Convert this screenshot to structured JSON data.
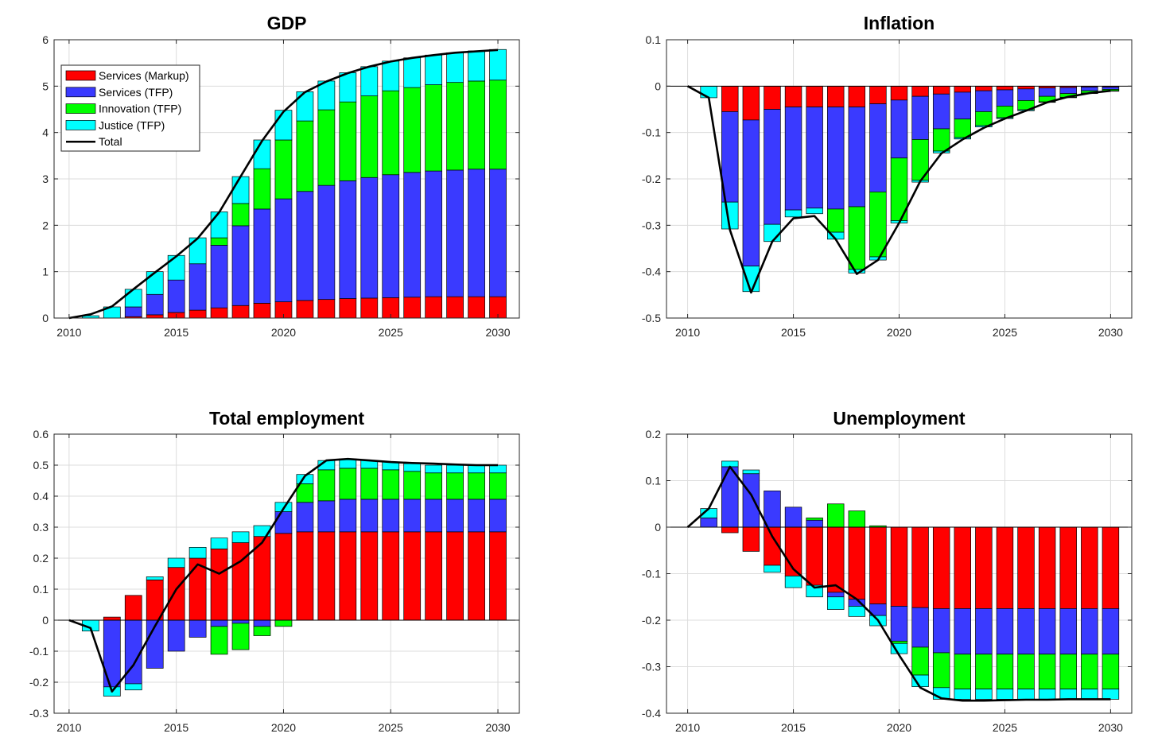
{
  "colors": {
    "Services (Markup)": "#ff0000",
    "Services (TFP)": "#3a3aff",
    "Innovation (TFP)": "#00ff00",
    "Justice (TFP)": "#00ffff",
    "Total": "#000000"
  },
  "legend": {
    "placement": "top-left",
    "entries": [
      "Services (Markup)",
      "Services (TFP)",
      "Innovation (TFP)",
      "Justice (TFP)",
      "Total"
    ]
  },
  "chart_data": [
    {
      "type": "bar",
      "stacked": true,
      "title": "GDP",
      "xlabel": "",
      "ylabel": "",
      "x": [
        2010,
        2011,
        2012,
        2013,
        2014,
        2015,
        2016,
        2017,
        2018,
        2019,
        2020,
        2021,
        2022,
        2023,
        2024,
        2025,
        2026,
        2027,
        2028,
        2029,
        2030
      ],
      "xlim": [
        2009.3,
        2031.0
      ],
      "xticks": [
        "2010",
        "2015",
        "2020",
        "2025",
        "2030"
      ],
      "ylim": [
        0,
        6
      ],
      "yticks": [
        "0",
        "1",
        "2",
        "3",
        "4",
        "5",
        "6"
      ],
      "grid": true,
      "series": [
        {
          "name": "Services (Markup)",
          "values": [
            0,
            0,
            0,
            0.03,
            0.07,
            0.12,
            0.17,
            0.22,
            0.27,
            0.32,
            0.35,
            0.38,
            0.4,
            0.42,
            0.43,
            0.44,
            0.45,
            0.46,
            0.46,
            0.46,
            0.46
          ]
        },
        {
          "name": "Services (TFP)",
          "values": [
            0,
            0,
            0,
            0.21,
            0.44,
            0.7,
            1.0,
            1.35,
            1.72,
            2.03,
            2.22,
            2.35,
            2.46,
            2.54,
            2.6,
            2.65,
            2.69,
            2.71,
            2.73,
            2.75,
            2.75
          ]
        },
        {
          "name": "Innovation (TFP)",
          "values": [
            0,
            0,
            0,
            0,
            0,
            0,
            0,
            0.16,
            0.48,
            0.87,
            1.27,
            1.52,
            1.63,
            1.7,
            1.76,
            1.81,
            1.83,
            1.86,
            1.89,
            1.9,
            1.92
          ]
        },
        {
          "name": "Justice (TFP)",
          "values": [
            0,
            0.05,
            0.24,
            0.38,
            0.49,
            0.53,
            0.56,
            0.56,
            0.58,
            0.62,
            0.64,
            0.63,
            0.62,
            0.63,
            0.63,
            0.64,
            0.64,
            0.64,
            0.64,
            0.65,
            0.66
          ]
        }
      ],
      "total": [
        0,
        0.08,
        0.25,
        0.62,
        0.98,
        1.33,
        1.72,
        2.28,
        3.05,
        3.82,
        4.45,
        4.87,
        5.1,
        5.28,
        5.42,
        5.53,
        5.61,
        5.67,
        5.72,
        5.75,
        5.78
      ]
    },
    {
      "type": "bar",
      "stacked": true,
      "title": "Inflation",
      "xlabel": "",
      "ylabel": "",
      "x": [
        2010,
        2011,
        2012,
        2013,
        2014,
        2015,
        2016,
        2017,
        2018,
        2019,
        2020,
        2021,
        2022,
        2023,
        2024,
        2025,
        2026,
        2027,
        2028,
        2029,
        2030
      ],
      "xlim": [
        2009.0,
        2031.0
      ],
      "xticks": [
        "2010",
        "2015",
        "2020",
        "2025",
        "2030"
      ],
      "ylim": [
        -0.5,
        0.1
      ],
      "yticks": [
        "-0.5",
        "-0.4",
        "-0.3",
        "-0.2",
        "-0.1",
        "0",
        "0.1"
      ],
      "grid": true,
      "series": [
        {
          "name": "Services (Markup)",
          "values": [
            0,
            0,
            -0.055,
            -0.073,
            -0.05,
            -0.045,
            -0.045,
            -0.045,
            -0.045,
            -0.038,
            -0.03,
            -0.022,
            -0.017,
            -0.013,
            -0.01,
            -0.008,
            -0.006,
            -0.004,
            -0.003,
            -0.002,
            -0.002
          ]
        },
        {
          "name": "Services (TFP)",
          "values": [
            0,
            0,
            -0.195,
            -0.315,
            -0.248,
            -0.222,
            -0.218,
            -0.22,
            -0.215,
            -0.19,
            -0.125,
            -0.093,
            -0.075,
            -0.058,
            -0.045,
            -0.035,
            -0.025,
            -0.018,
            -0.013,
            -0.008,
            -0.005
          ]
        },
        {
          "name": "Innovation (TFP)",
          "values": [
            0,
            0,
            0,
            0,
            0,
            0,
            0,
            -0.05,
            -0.135,
            -0.14,
            -0.135,
            -0.088,
            -0.048,
            -0.04,
            -0.03,
            -0.025,
            -0.02,
            -0.012,
            -0.008,
            -0.005,
            -0.003
          ]
        },
        {
          "name": "Justice (TFP)",
          "values": [
            0,
            -0.025,
            -0.058,
            -0.055,
            -0.037,
            -0.015,
            -0.012,
            -0.015,
            -0.008,
            -0.007,
            -0.005,
            -0.004,
            -0.004,
            -0.003,
            -0.003,
            -0.002,
            -0.002,
            -0.001,
            -0.001,
            -0.001,
            -0.001
          ]
        }
      ],
      "total": [
        0,
        -0.025,
        -0.31,
        -0.445,
        -0.335,
        -0.285,
        -0.28,
        -0.33,
        -0.405,
        -0.375,
        -0.295,
        -0.205,
        -0.145,
        -0.115,
        -0.09,
        -0.07,
        -0.053,
        -0.035,
        -0.023,
        -0.015,
        -0.01
      ]
    },
    {
      "type": "bar",
      "stacked": true,
      "title": "Total employment",
      "xlabel": "",
      "ylabel": "",
      "x": [
        2010,
        2011,
        2012,
        2013,
        2014,
        2015,
        2016,
        2017,
        2018,
        2019,
        2020,
        2021,
        2022,
        2023,
        2024,
        2025,
        2026,
        2027,
        2028,
        2029,
        2030
      ],
      "xlim": [
        2009.3,
        2031.0
      ],
      "xticks": [
        "2010",
        "2015",
        "2020",
        "2025",
        "2030"
      ],
      "ylim": [
        -0.3,
        0.6
      ],
      "yticks": [
        "-0.3",
        "-0.2",
        "-0.1",
        "0",
        "0.1",
        "0.2",
        "0.3",
        "0.4",
        "0.5",
        "0.6"
      ],
      "grid": true,
      "series": [
        {
          "name": "Services (Markup)",
          "values": [
            0,
            0,
            0.01,
            0.08,
            0.13,
            0.17,
            0.2,
            0.23,
            0.25,
            0.27,
            0.28,
            0.285,
            0.285,
            0.285,
            0.285,
            0.285,
            0.285,
            0.285,
            0.285,
            0.285,
            0.285
          ]
        },
        {
          "name": "Services (TFP)",
          "values": [
            0,
            0,
            -0.215,
            -0.205,
            -0.155,
            -0.1,
            -0.055,
            -0.02,
            -0.01,
            -0.02,
            0.07,
            0.095,
            0.1,
            0.105,
            0.105,
            0.105,
            0.105,
            0.105,
            0.105,
            0.105,
            0.105
          ]
        },
        {
          "name": "Innovation (TFP)",
          "values": [
            0,
            0,
            0,
            0,
            0,
            0,
            0,
            -0.09,
            -0.085,
            -0.03,
            -0.02,
            0.06,
            0.1,
            0.1,
            0.1,
            0.095,
            0.09,
            0.085,
            0.085,
            0.085,
            0.085
          ]
        },
        {
          "name": "Justice (TFP)",
          "values": [
            0,
            -0.035,
            -0.03,
            -0.02,
            0.01,
            0.03,
            0.035,
            0.035,
            0.035,
            0.035,
            0.03,
            0.03,
            0.03,
            0.03,
            0.025,
            0.025,
            0.025,
            0.025,
            0.025,
            0.025,
            0.025
          ]
        }
      ],
      "total": [
        0,
        -0.025,
        -0.23,
        -0.145,
        -0.02,
        0.1,
        0.18,
        0.15,
        0.19,
        0.25,
        0.36,
        0.465,
        0.515,
        0.52,
        0.515,
        0.51,
        0.507,
        0.505,
        0.502,
        0.5,
        0.5
      ]
    },
    {
      "type": "bar",
      "stacked": true,
      "title": "Unemployment",
      "xlabel": "",
      "ylabel": "",
      "x": [
        2010,
        2011,
        2012,
        2013,
        2014,
        2015,
        2016,
        2017,
        2018,
        2019,
        2020,
        2021,
        2022,
        2023,
        2024,
        2025,
        2026,
        2027,
        2028,
        2029,
        2030
      ],
      "xlim": [
        2009.0,
        2031.0
      ],
      "xticks": [
        "2010",
        "2015",
        "2020",
        "2025",
        "2030"
      ],
      "ylim": [
        -0.4,
        0.2
      ],
      "yticks": [
        "-0.4",
        "-0.3",
        "-0.2",
        "-0.1",
        "0",
        "0.1",
        "0.2"
      ],
      "grid": true,
      "series": [
        {
          "name": "Services (Markup)",
          "values": [
            0,
            0,
            -0.012,
            -0.052,
            -0.082,
            -0.105,
            -0.125,
            -0.14,
            -0.155,
            -0.165,
            -0.17,
            -0.173,
            -0.175,
            -0.175,
            -0.175,
            -0.175,
            -0.175,
            -0.175,
            -0.175,
            -0.175,
            -0.175
          ]
        },
        {
          "name": "Services (TFP)",
          "values": [
            0,
            0.02,
            0.13,
            0.115,
            0.078,
            0.043,
            0.015,
            -0.01,
            -0.015,
            -0.025,
            -0.075,
            -0.085,
            -0.095,
            -0.098,
            -0.098,
            -0.098,
            -0.098,
            -0.098,
            -0.098,
            -0.098,
            -0.098
          ]
        },
        {
          "name": "Innovation (TFP)",
          "values": [
            0,
            0,
            0,
            0,
            0,
            0,
            0.005,
            0.05,
            0.035,
            0.003,
            -0.005,
            -0.06,
            -0.075,
            -0.075,
            -0.075,
            -0.075,
            -0.075,
            -0.075,
            -0.075,
            -0.075,
            -0.075
          ]
        },
        {
          "name": "Justice (TFP)",
          "values": [
            0,
            0.02,
            0.012,
            0.008,
            -0.015,
            -0.025,
            -0.025,
            -0.027,
            -0.022,
            -0.022,
            -0.022,
            -0.025,
            -0.025,
            -0.022,
            -0.022,
            -0.022,
            -0.022,
            -0.022,
            -0.022,
            -0.022,
            -0.022
          ]
        }
      ],
      "total": [
        0,
        0.04,
        0.13,
        0.07,
        -0.02,
        -0.09,
        -0.13,
        -0.125,
        -0.155,
        -0.2,
        -0.275,
        -0.345,
        -0.368,
        -0.373,
        -0.373,
        -0.372,
        -0.371,
        -0.371,
        -0.37,
        -0.37,
        -0.37
      ]
    }
  ]
}
